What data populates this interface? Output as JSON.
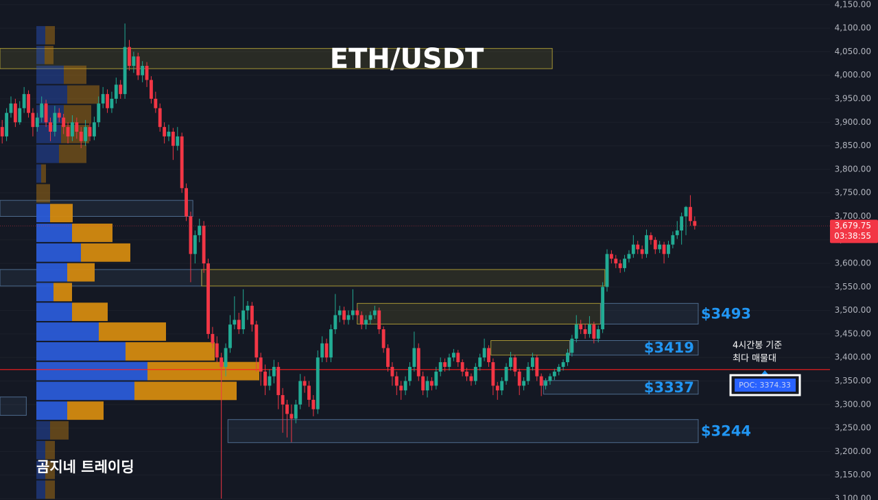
{
  "chart_data": {
    "type": "candlestick",
    "title": "ETH/USDT",
    "watermark": "곰지네 트레이딩",
    "ylim": [
      3097,
      4160
    ],
    "yticks": [
      {
        "value": 4150,
        "label": "4,150.00"
      },
      {
        "value": 4100,
        "label": "4,100.00"
      },
      {
        "value": 4050,
        "label": "4,050.00"
      },
      {
        "value": 4000,
        "label": "4,000.00"
      },
      {
        "value": 3950,
        "label": "3,950.00"
      },
      {
        "value": 3900,
        "label": "3,900.00"
      },
      {
        "value": 3850,
        "label": "3,850.00"
      },
      {
        "value": 3800,
        "label": "3,800.00"
      },
      {
        "value": 3750,
        "label": "3,750.00"
      },
      {
        "value": 3700,
        "label": "3,700.00"
      },
      {
        "value": 3650,
        "label": "3,650.00"
      },
      {
        "value": 3600,
        "label": "3,600.00"
      },
      {
        "value": 3550,
        "label": "3,550.00"
      },
      {
        "value": 3500,
        "label": "3,500.00"
      },
      {
        "value": 3450,
        "label": "3,450.00"
      },
      {
        "value": 3400,
        "label": "3,400.00"
      },
      {
        "value": 3350,
        "label": "3,350.00"
      },
      {
        "value": 3300,
        "label": "3,300.00"
      },
      {
        "value": 3250,
        "label": "3,250.00"
      },
      {
        "value": 3200,
        "label": "3,200.00"
      },
      {
        "value": 3150,
        "label": "3,150.00"
      },
      {
        "value": 3100,
        "label": "3,100.00"
      }
    ],
    "grid": true,
    "up_color": "#22ab94",
    "down_color": "#f23645",
    "candles": [
      [
        3890,
        3905,
        3855,
        3870
      ],
      [
        3870,
        3930,
        3860,
        3920
      ],
      [
        3920,
        3955,
        3910,
        3940
      ],
      [
        3940,
        3950,
        3890,
        3900
      ],
      [
        3900,
        3945,
        3895,
        3930
      ],
      [
        3930,
        3975,
        3920,
        3960
      ],
      [
        3960,
        3968,
        3910,
        3920
      ],
      [
        3920,
        3930,
        3870,
        3890
      ],
      [
        3890,
        3920,
        3880,
        3910
      ],
      [
        3910,
        3955,
        3900,
        3940
      ],
      [
        3940,
        3948,
        3890,
        3900
      ],
      [
        3900,
        3910,
        3860,
        3880
      ],
      [
        3880,
        3935,
        3870,
        3920
      ],
      [
        3920,
        3930,
        3900,
        3910
      ],
      [
        3910,
        3918,
        3875,
        3890
      ],
      [
        3890,
        3900,
        3855,
        3870
      ],
      [
        3870,
        3915,
        3860,
        3900
      ],
      [
        3900,
        3910,
        3865,
        3880
      ],
      [
        3880,
        3890,
        3845,
        3860
      ],
      [
        3860,
        3905,
        3850,
        3890
      ],
      [
        3890,
        3898,
        3860,
        3870
      ],
      [
        3870,
        3912,
        3862,
        3900
      ],
      [
        3900,
        3955,
        3890,
        3940
      ],
      [
        3940,
        3975,
        3930,
        3960
      ],
      [
        3960,
        3970,
        3920,
        3930
      ],
      [
        3930,
        3965,
        3920,
        3950
      ],
      [
        3950,
        3995,
        3940,
        3980
      ],
      [
        3980,
        3990,
        3950,
        3960
      ],
      [
        3960,
        4110,
        3950,
        4060
      ],
      [
        4060,
        4075,
        4010,
        4020
      ],
      [
        4020,
        4050,
        4005,
        4040
      ],
      [
        4040,
        4048,
        3990,
        4000
      ],
      [
        4000,
        4030,
        3985,
        4020
      ],
      [
        4020,
        4028,
        3975,
        3990
      ],
      [
        3990,
        3998,
        3940,
        3950
      ],
      [
        3950,
        3965,
        3920,
        3930
      ],
      [
        3930,
        3940,
        3880,
        3890
      ],
      [
        3890,
        3900,
        3855,
        3870
      ],
      [
        3870,
        3895,
        3860,
        3880
      ],
      [
        3880,
        3888,
        3820,
        3850
      ],
      [
        3850,
        3890,
        3840,
        3870
      ],
      [
        3870,
        3878,
        3750,
        3760
      ],
      [
        3760,
        3770,
        3690,
        3700
      ],
      [
        3700,
        3710,
        3560,
        3620
      ],
      [
        3620,
        3670,
        3600,
        3660
      ],
      [
        3660,
        3695,
        3645,
        3680
      ],
      [
        3680,
        3690,
        3580,
        3600
      ],
      [
        3600,
        3610,
        3440,
        3450
      ],
      [
        3450,
        3465,
        3420,
        3430
      ],
      [
        3430,
        3445,
        3390,
        3400
      ],
      [
        3400,
        3410,
        3100,
        3380
      ],
      [
        3380,
        3430,
        3360,
        3420
      ],
      [
        3420,
        3490,
        3410,
        3470
      ],
      [
        3470,
        3530,
        3460,
        3480
      ],
      [
        3480,
        3495,
        3450,
        3460
      ],
      [
        3460,
        3545,
        3450,
        3500
      ],
      [
        3500,
        3520,
        3480,
        3510
      ],
      [
        3510,
        3518,
        3455,
        3470
      ],
      [
        3470,
        3478,
        3370,
        3400
      ],
      [
        3400,
        3410,
        3340,
        3370
      ],
      [
        3370,
        3385,
        3320,
        3340
      ],
      [
        3340,
        3375,
        3330,
        3360
      ],
      [
        3360,
        3395,
        3345,
        3380
      ],
      [
        3380,
        3390,
        3290,
        3320
      ],
      [
        3320,
        3335,
        3240,
        3300
      ],
      [
        3300,
        3310,
        3230,
        3280
      ],
      [
        3280,
        3300,
        3220,
        3270
      ],
      [
        3270,
        3310,
        3260,
        3300
      ],
      [
        3300,
        3365,
        3290,
        3350
      ],
      [
        3350,
        3360,
        3325,
        3340
      ],
      [
        3340,
        3350,
        3295,
        3310
      ],
      [
        3310,
        3320,
        3275,
        3290
      ],
      [
        3290,
        3415,
        3280,
        3400
      ],
      [
        3400,
        3445,
        3390,
        3430
      ],
      [
        3430,
        3440,
        3390,
        3400
      ],
      [
        3400,
        3470,
        3390,
        3460
      ],
      [
        3460,
        3535,
        3450,
        3490
      ],
      [
        3490,
        3510,
        3475,
        3500
      ],
      [
        3500,
        3508,
        3470,
        3480
      ],
      [
        3480,
        3500,
        3470,
        3490
      ],
      [
        3490,
        3545,
        3480,
        3500
      ],
      [
        3500,
        3505,
        3480,
        3490
      ],
      [
        3490,
        3498,
        3460,
        3470
      ],
      [
        3470,
        3490,
        3460,
        3480
      ],
      [
        3480,
        3498,
        3470,
        3490
      ],
      [
        3490,
        3510,
        3482,
        3500
      ],
      [
        3500,
        3506,
        3450,
        3460
      ],
      [
        3460,
        3466,
        3410,
        3420
      ],
      [
        3420,
        3428,
        3370,
        3380
      ],
      [
        3380,
        3390,
        3340,
        3360
      ],
      [
        3360,
        3370,
        3320,
        3340
      ],
      [
        3340,
        3350,
        3310,
        3330
      ],
      [
        3330,
        3360,
        3320,
        3350
      ],
      [
        3350,
        3390,
        3340,
        3380
      ],
      [
        3380,
        3455,
        3370,
        3420
      ],
      [
        3420,
        3430,
        3350,
        3360
      ],
      [
        3360,
        3370,
        3320,
        3330
      ],
      [
        3330,
        3360,
        3315,
        3350
      ],
      [
        3350,
        3358,
        3330,
        3340
      ],
      [
        3340,
        3380,
        3332,
        3370
      ],
      [
        3370,
        3400,
        3360,
        3390
      ],
      [
        3390,
        3398,
        3370,
        3380
      ],
      [
        3380,
        3408,
        3372,
        3400
      ],
      [
        3400,
        3418,
        3392,
        3410
      ],
      [
        3410,
        3416,
        3380,
        3390
      ],
      [
        3390,
        3396,
        3360,
        3370
      ],
      [
        3370,
        3378,
        3350,
        3360
      ],
      [
        3360,
        3366,
        3340,
        3350
      ],
      [
        3350,
        3388,
        3342,
        3380
      ],
      [
        3380,
        3408,
        3372,
        3400
      ],
      [
        3400,
        3440,
        3392,
        3420
      ],
      [
        3420,
        3426,
        3380,
        3390
      ],
      [
        3390,
        3398,
        3320,
        3340
      ],
      [
        3340,
        3348,
        3310,
        3330
      ],
      [
        3330,
        3358,
        3320,
        3350
      ],
      [
        3350,
        3388,
        3342,
        3380
      ],
      [
        3380,
        3412,
        3372,
        3400
      ],
      [
        3400,
        3406,
        3360,
        3370
      ],
      [
        3370,
        3376,
        3320,
        3340
      ],
      [
        3340,
        3358,
        3330,
        3350
      ],
      [
        3350,
        3390,
        3342,
        3380
      ],
      [
        3380,
        3410,
        3372,
        3400
      ],
      [
        3400,
        3406,
        3350,
        3360
      ],
      [
        3360,
        3366,
        3318,
        3340
      ],
      [
        3340,
        3356,
        3332,
        3350
      ],
      [
        3350,
        3366,
        3342,
        3360
      ],
      [
        3360,
        3376,
        3352,
        3370
      ],
      [
        3370,
        3386,
        3362,
        3380
      ],
      [
        3380,
        3396,
        3372,
        3390
      ],
      [
        3390,
        3418,
        3382,
        3410
      ],
      [
        3410,
        3448,
        3402,
        3440
      ],
      [
        3440,
        3490,
        3432,
        3470
      ],
      [
        3470,
        3480,
        3450,
        3460
      ],
      [
        3460,
        3472,
        3440,
        3450
      ],
      [
        3450,
        3488,
        3442,
        3470
      ],
      [
        3470,
        3476,
        3430,
        3440
      ],
      [
        3440,
        3468,
        3432,
        3460
      ],
      [
        3460,
        3560,
        3452,
        3550
      ],
      [
        3550,
        3630,
        3540,
        3620
      ],
      [
        3620,
        3628,
        3600,
        3610
      ],
      [
        3610,
        3618,
        3590,
        3600
      ],
      [
        3600,
        3608,
        3580,
        3590
      ],
      [
        3590,
        3618,
        3582,
        3610
      ],
      [
        3610,
        3628,
        3602,
        3620
      ],
      [
        3620,
        3660,
        3612,
        3640
      ],
      [
        3640,
        3648,
        3620,
        3630
      ],
      [
        3630,
        3638,
        3610,
        3620
      ],
      [
        3620,
        3672,
        3612,
        3660
      ],
      [
        3660,
        3666,
        3640,
        3650
      ],
      [
        3650,
        3656,
        3620,
        3630
      ],
      [
        3630,
        3648,
        3622,
        3640
      ],
      [
        3640,
        3646,
        3600,
        3620
      ],
      [
        3620,
        3648,
        3612,
        3640
      ],
      [
        3640,
        3668,
        3632,
        3660
      ],
      [
        3660,
        3690,
        3652,
        3670
      ],
      [
        3670,
        3708,
        3640,
        3700
      ],
      [
        3700,
        3722,
        3660,
        3720
      ],
      [
        3720,
        3745,
        3680,
        3690
      ],
      [
        3690,
        3700,
        3672,
        3680
      ]
    ],
    "volume_profile": {
      "row_top": 4106,
      "row_size": 42,
      "value_area": [
        3265,
        3730
      ],
      "buy_color": "#2a5bd7",
      "sell_color": "#d38a10",
      "buy": [
        13,
        12,
        40,
        45,
        40,
        36,
        33,
        7,
        0,
        20,
        52,
        65,
        45,
        25,
        52,
        91,
        130,
        162,
        143,
        45,
        20,
        13,
        13,
        13
      ],
      "sell": [
        14,
        13,
        33,
        47,
        40,
        41,
        40,
        7,
        20,
        33,
        59,
        72,
        40,
        27,
        52,
        98,
        130,
        163,
        149,
        53,
        27,
        14,
        14,
        14
      ]
    },
    "zones": [
      {
        "top": 4057,
        "bottom": 4014,
        "start": 0,
        "end": 126,
        "color": "#c9b43a"
      },
      {
        "top": 3734,
        "bottom": 3700,
        "start": 0,
        "end": 44,
        "color": "#5b7fa8"
      },
      {
        "top": 3587,
        "bottom": 3552,
        "start": 0,
        "end": 46,
        "color": "#5b7fa8"
      },
      {
        "top": 3587,
        "bottom": 3552,
        "start": 46,
        "end": 138,
        "color": "#c9b43a"
      },
      {
        "top": 3515,
        "bottom": 3471,
        "start": 81.5,
        "end": 137,
        "color": "#c9b43a"
      },
      {
        "top": 3515,
        "bottom": 3471,
        "start": 137,
        "end": 159.3,
        "color": "#5b7fa8",
        "label": "$3493",
        "label_side": "outside"
      },
      {
        "top": 3436,
        "bottom": 3405,
        "start": 112,
        "end": 130,
        "color": "#c9b43a"
      },
      {
        "top": 3436,
        "bottom": 3405,
        "start": 130,
        "end": 159.3,
        "color": "#5b7fa8",
        "label": "$3419",
        "label_side": "inside"
      },
      {
        "top": 3351,
        "bottom": 3322,
        "start": 124,
        "end": 159.3,
        "color": "#5b7fa8",
        "label": "$3337",
        "label_side": "inside"
      },
      {
        "top": 3268,
        "bottom": 3219,
        "start": 52,
        "end": 159.3,
        "color": "#5b7fa8",
        "label": "$3244",
        "label_side": "outside"
      },
      {
        "top": 3316,
        "bottom": 3277,
        "start": 0,
        "end": 6,
        "color": "#5b7fa8"
      }
    ],
    "poc": {
      "value": 3374.33,
      "label": "POC: 3374.33",
      "color": "#ff1e1e"
    },
    "annotation": [
      "4시간봉 기준",
      "최다 매물대"
    ],
    "last_price": {
      "value": 3679.75,
      "label": "3,679.75"
    },
    "countdown": "03:38:55"
  }
}
